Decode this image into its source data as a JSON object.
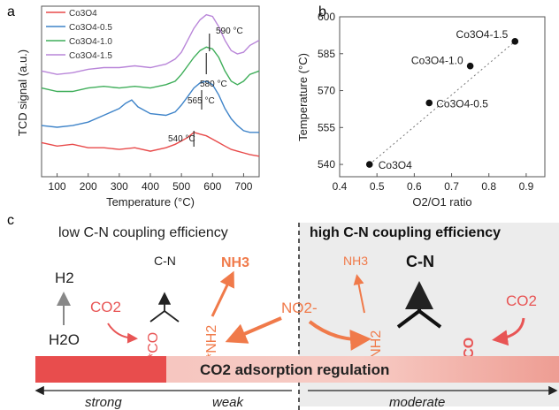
{
  "panels": {
    "a": "a",
    "b": "b",
    "c": "c"
  },
  "chart_data": [
    {
      "type": "line",
      "panel": "a",
      "xlabel": "Temperature (°C)",
      "ylabel": "TCD signal (a.u.)",
      "xlim": [
        50,
        750
      ],
      "xticks": [
        100,
        200,
        300,
        400,
        500,
        600,
        700
      ],
      "yticks": [],
      "grid": false,
      "legend_position": "top-left",
      "series": [
        {
          "name": "Co3O4",
          "color": "#e84a4a",
          "x": [
            50,
            100,
            150,
            200,
            250,
            300,
            350,
            400,
            450,
            480,
            500,
            520,
            540,
            560,
            580,
            600,
            620,
            640,
            660,
            680,
            700,
            720,
            750
          ],
          "y": [
            0.2,
            0.18,
            0.19,
            0.17,
            0.17,
            0.16,
            0.17,
            0.15,
            0.17,
            0.19,
            0.21,
            0.23,
            0.26,
            0.25,
            0.24,
            0.22,
            0.2,
            0.18,
            0.16,
            0.15,
            0.14,
            0.13,
            0.12
          ]
        },
        {
          "name": "Co3O4-0.5",
          "color": "#3f84c9",
          "x": [
            50,
            100,
            150,
            200,
            250,
            300,
            320,
            340,
            360,
            400,
            450,
            480,
            500,
            520,
            540,
            560,
            580,
            600,
            620,
            640,
            660,
            680,
            700,
            720,
            750
          ],
          "y": [
            0.3,
            0.29,
            0.3,
            0.32,
            0.36,
            0.4,
            0.43,
            0.45,
            0.41,
            0.37,
            0.36,
            0.38,
            0.42,
            0.47,
            0.52,
            0.55,
            0.56,
            0.54,
            0.48,
            0.4,
            0.34,
            0.3,
            0.27,
            0.26,
            0.26
          ]
        },
        {
          "name": "Co3O4-1.0",
          "color": "#3fae5a",
          "x": [
            50,
            100,
            150,
            200,
            250,
            300,
            350,
            400,
            450,
            480,
            500,
            520,
            540,
            560,
            580,
            600,
            620,
            640,
            660,
            680,
            700,
            720,
            750
          ],
          "y": [
            0.52,
            0.5,
            0.5,
            0.52,
            0.53,
            0.52,
            0.53,
            0.52,
            0.54,
            0.56,
            0.6,
            0.65,
            0.7,
            0.74,
            0.76,
            0.75,
            0.7,
            0.62,
            0.56,
            0.54,
            0.56,
            0.6,
            0.62
          ]
        },
        {
          "name": "Co3O4-1.5",
          "color": "#b986d9",
          "x": [
            50,
            100,
            150,
            200,
            250,
            300,
            350,
            400,
            450,
            480,
            500,
            520,
            540,
            560,
            580,
            600,
            620,
            640,
            660,
            680,
            700,
            720,
            750
          ],
          "y": [
            0.62,
            0.6,
            0.61,
            0.63,
            0.64,
            0.64,
            0.65,
            0.64,
            0.66,
            0.69,
            0.73,
            0.8,
            0.87,
            0.92,
            0.95,
            0.94,
            0.88,
            0.8,
            0.74,
            0.72,
            0.73,
            0.77,
            0.8
          ]
        }
      ],
      "annotations": [
        {
          "text": "590 °C",
          "x": 590,
          "series": "Co3O4-1.5"
        },
        {
          "text": "580 °C",
          "x": 580,
          "series": "Co3O4-1.0"
        },
        {
          "text": "565 °C",
          "x": 565,
          "series": "Co3O4-0.5"
        },
        {
          "text": "540 °C",
          "x": 540,
          "series": "Co3O4"
        }
      ]
    },
    {
      "type": "scatter",
      "panel": "b",
      "xlabel": "O2/O1 ratio",
      "ylabel": "Temperature (°C)",
      "xlim": [
        0.4,
        0.95
      ],
      "ylim": [
        535,
        600
      ],
      "xticks": [
        0.4,
        0.5,
        0.6,
        0.7,
        0.8,
        0.9
      ],
      "yticks": [
        540,
        555,
        570,
        585,
        600
      ],
      "grid": false,
      "trendline": "dotted linear fit",
      "points": [
        {
          "label": "Co3O4",
          "x": 0.48,
          "y": 540
        },
        {
          "label": "Co3O4-0.5",
          "x": 0.64,
          "y": 565
        },
        {
          "label": "Co3O4-1.0",
          "x": 0.75,
          "y": 580
        },
        {
          "label": "Co3O4-1.5",
          "x": 0.87,
          "y": 590
        }
      ]
    }
  ],
  "scheme": {
    "left_title": "low C-N coupling efficiency",
    "right_title": "high C-N coupling efficiency",
    "h2": "H2",
    "h2o": "H2O",
    "co2_left": "CO2",
    "co2_right": "CO2",
    "co_left": "*CO",
    "co_right": "*CO",
    "nh2_left": "*NH2",
    "nh2_right": "*NH2",
    "cn_left": "C-N",
    "cn_right": "C-N",
    "nh3_left": "NH3",
    "nh3_right": "NH3",
    "no2": "NO2-",
    "bar_label": "CO2 adsorption regulation",
    "strong": "strong",
    "weak": "weak",
    "moderate": "moderate"
  }
}
